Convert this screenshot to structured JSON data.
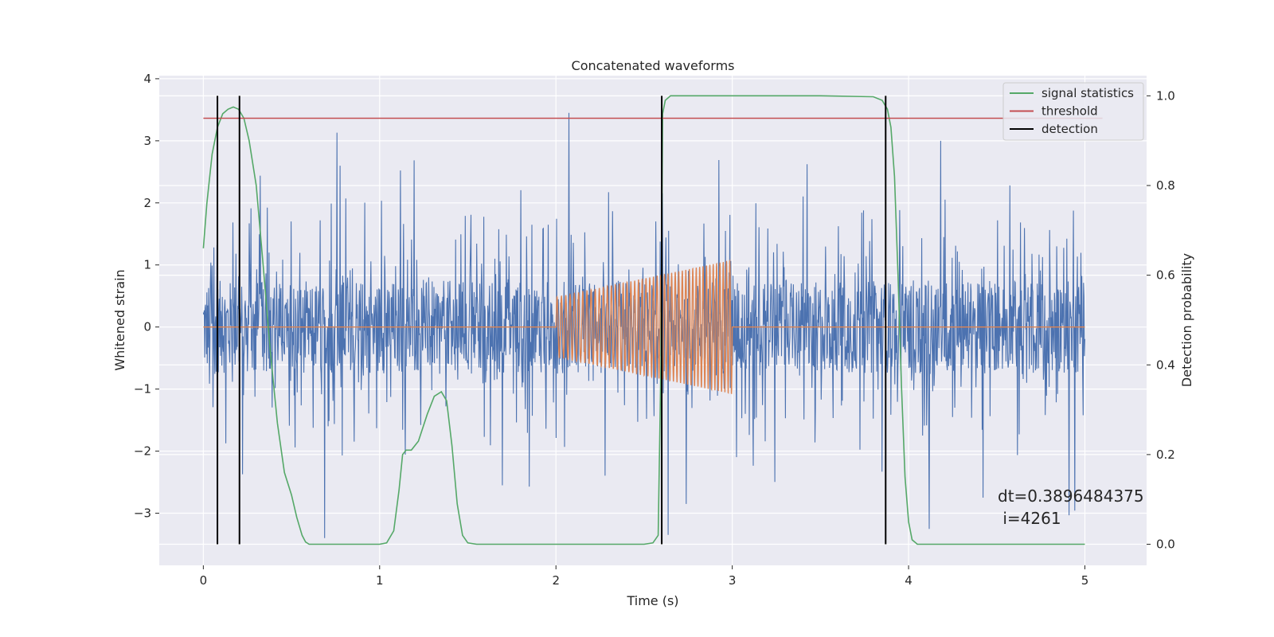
{
  "chart_data": {
    "type": "line",
    "title": "Concatenated waveforms",
    "xlabel": "Time (s)",
    "ylabel": "Whitened strain",
    "y2label": "Detection probability",
    "xlim": [
      -0.25,
      5.35
    ],
    "ylim": [
      -3.84,
      4.05
    ],
    "y2lim": [
      -0.047,
      1.045
    ],
    "x_ticks": [
      0,
      1,
      2,
      3,
      4,
      5
    ],
    "y_ticks": [
      -3,
      -2,
      -1,
      0,
      1,
      2,
      3,
      4
    ],
    "y2_ticks": [
      0.0,
      0.2,
      0.4,
      0.6,
      0.8,
      1.0
    ],
    "x_tick_labels": [
      "0",
      "1",
      "2",
      "3",
      "4",
      "5"
    ],
    "y_tick_labels": [
      "−3",
      "−2",
      "−1",
      "0",
      "1",
      "2",
      "3",
      "4"
    ],
    "y2_tick_labels": [
      "0.0",
      "0.2",
      "0.4",
      "0.6",
      "0.8",
      "1.0"
    ],
    "grid": true,
    "legend_position": "top-right",
    "legend": [
      {
        "label": "signal statistics",
        "color": "#55a868",
        "kind": "line"
      },
      {
        "label": "threshold",
        "color": "#c44e52",
        "kind": "line"
      },
      {
        "label": "detection",
        "color": "#000000",
        "kind": "line"
      }
    ],
    "series": [
      {
        "kind": "noise",
        "axis": "left",
        "color": "#4c72b0",
        "x_range": [
          0,
          5
        ],
        "core_amplitude": 0.75,
        "peak_range": [
          -3.4,
          3.45
        ],
        "sample_count": 2000
      },
      {
        "kind": "chirp",
        "axis": "left",
        "color": "#dd8452",
        "x_range": [
          0,
          5
        ],
        "active_range": [
          2.0,
          3.0
        ],
        "amplitude_start": 0.48,
        "amplitude_end": 1.08,
        "cycles": 47
      },
      {
        "name": "signal statistics",
        "kind": "line",
        "axis": "right",
        "color": "#55a868",
        "points": [
          [
            0.0,
            0.66
          ],
          [
            0.02,
            0.76
          ],
          [
            0.05,
            0.87
          ],
          [
            0.08,
            0.93
          ],
          [
            0.11,
            0.96
          ],
          [
            0.14,
            0.97
          ],
          [
            0.17,
            0.975
          ],
          [
            0.2,
            0.97
          ],
          [
            0.23,
            0.95
          ],
          [
            0.26,
            0.9
          ],
          [
            0.3,
            0.8
          ],
          [
            0.34,
            0.62
          ],
          [
            0.38,
            0.43
          ],
          [
            0.42,
            0.27
          ],
          [
            0.46,
            0.16
          ],
          [
            0.5,
            0.11
          ],
          [
            0.53,
            0.06
          ],
          [
            0.56,
            0.02
          ],
          [
            0.58,
            0.005
          ],
          [
            0.6,
            0.0
          ],
          [
            0.7,
            0.0
          ],
          [
            0.9,
            0.0
          ],
          [
            1.0,
            0.0
          ],
          [
            1.04,
            0.003
          ],
          [
            1.08,
            0.03
          ],
          [
            1.11,
            0.12
          ],
          [
            1.13,
            0.2
          ],
          [
            1.15,
            0.21
          ],
          [
            1.18,
            0.21
          ],
          [
            1.22,
            0.23
          ],
          [
            1.27,
            0.29
          ],
          [
            1.31,
            0.33
          ],
          [
            1.35,
            0.34
          ],
          [
            1.38,
            0.32
          ],
          [
            1.41,
            0.22
          ],
          [
            1.44,
            0.09
          ],
          [
            1.47,
            0.02
          ],
          [
            1.5,
            0.003
          ],
          [
            1.55,
            0.0
          ],
          [
            1.8,
            0.0
          ],
          [
            2.2,
            0.0
          ],
          [
            2.5,
            0.0
          ],
          [
            2.55,
            0.003
          ],
          [
            2.58,
            0.02
          ],
          [
            2.595,
            0.4
          ],
          [
            2.605,
            0.96
          ],
          [
            2.62,
            0.99
          ],
          [
            2.65,
            1.0
          ],
          [
            3.0,
            1.0
          ],
          [
            3.5,
            1.0
          ],
          [
            3.8,
            0.998
          ],
          [
            3.85,
            0.99
          ],
          [
            3.88,
            0.97
          ],
          [
            3.9,
            0.93
          ],
          [
            3.92,
            0.82
          ],
          [
            3.94,
            0.6
          ],
          [
            3.96,
            0.35
          ],
          [
            3.98,
            0.15
          ],
          [
            4.0,
            0.05
          ],
          [
            4.02,
            0.01
          ],
          [
            4.05,
            0.0
          ],
          [
            4.5,
            0.0
          ],
          [
            5.0,
            0.0
          ]
        ]
      },
      {
        "name": "threshold",
        "kind": "line",
        "axis": "right",
        "color": "#c44e52",
        "points": [
          [
            0.0,
            0.95
          ],
          [
            5.1,
            0.95
          ]
        ]
      },
      {
        "name": "detection",
        "kind": "vlines",
        "axis": "right",
        "color": "#000000",
        "x": [
          0.08,
          0.205,
          2.6,
          3.87
        ],
        "y_range": [
          0.0,
          1.0
        ]
      }
    ],
    "annotation": {
      "line1": "dt=0.3896484375",
      "line2": " i=4261"
    }
  }
}
